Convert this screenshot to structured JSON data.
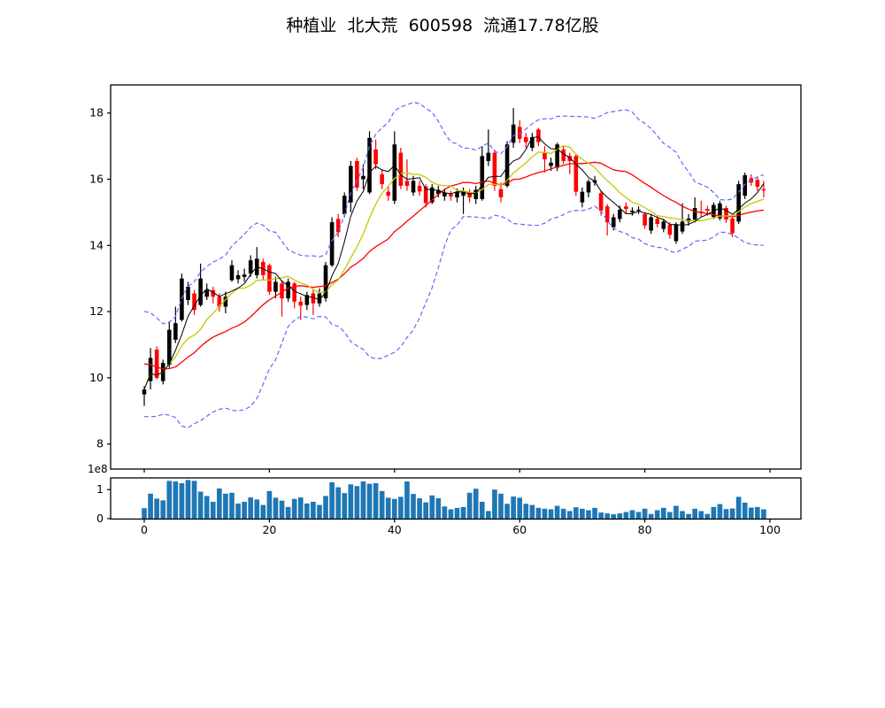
{
  "title": "种植业  北大荒  600598  流通17.78亿股",
  "chart_data": [
    {
      "type": "candlestick",
      "name": "daily-price-with-bollinger-and-moving-averages",
      "x_ticks": [
        0,
        20,
        40,
        60,
        80,
        100
      ],
      "y_ticks": [
        8,
        10,
        12,
        14,
        16,
        18
      ],
      "ylim": [
        7.2,
        18.9
      ],
      "xlim": [
        -5.4,
        104.9
      ],
      "grid": false,
      "legend": "none",
      "up_color": "#000000",
      "down_color": "#ff0000",
      "overlays": [
        {
          "name": "ma-fast",
          "color": "#000000",
          "line_style": "solid"
        },
        {
          "name": "ma-medium",
          "color": "#c8c800",
          "line_style": "solid"
        },
        {
          "name": "ma-slow",
          "color": "#ff0000",
          "line_style": "solid"
        },
        {
          "name": "bollinger-bands",
          "color": "#6666ff",
          "line_style": "dashed"
        }
      ],
      "ohlc": [
        [
          9.5,
          9.75,
          9.15,
          9.65
        ],
        [
          9.9,
          10.9,
          9.65,
          10.6
        ],
        [
          10.85,
          10.95,
          9.95,
          10.0
        ],
        [
          9.9,
          10.55,
          9.8,
          10.45
        ],
        [
          10.4,
          11.7,
          10.3,
          11.45
        ],
        [
          11.15,
          12.15,
          11.05,
          11.65
        ],
        [
          11.75,
          13.15,
          11.7,
          13.0
        ],
        [
          12.35,
          12.9,
          12.2,
          12.75
        ],
        [
          12.55,
          12.65,
          11.9,
          12.05
        ],
        [
          12.2,
          13.45,
          12.15,
          13.0
        ],
        [
          12.45,
          12.85,
          12.35,
          12.65
        ],
        [
          12.65,
          12.75,
          12.25,
          12.45
        ],
        [
          12.45,
          12.55,
          12.0,
          12.15
        ],
        [
          12.15,
          12.6,
          11.95,
          12.45
        ],
        [
          12.95,
          13.55,
          12.9,
          13.4
        ],
        [
          12.98,
          13.25,
          12.85,
          13.1
        ],
        [
          13.05,
          13.3,
          12.9,
          13.12
        ],
        [
          13.15,
          13.7,
          13.05,
          13.55
        ],
        [
          13.1,
          13.95,
          13.0,
          13.6
        ],
        [
          13.5,
          13.6,
          12.95,
          13.1
        ],
        [
          13.4,
          13.45,
          12.5,
          12.6
        ],
        [
          12.6,
          13.05,
          12.4,
          12.9
        ],
        [
          12.85,
          12.95,
          11.85,
          12.4
        ],
        [
          12.4,
          13.0,
          12.3,
          12.9
        ],
        [
          12.85,
          12.9,
          12.1,
          12.3
        ],
        [
          12.3,
          12.45,
          11.75,
          12.18
        ],
        [
          12.2,
          12.6,
          12.05,
          12.5
        ],
        [
          12.55,
          12.65,
          11.9,
          12.25
        ],
        [
          12.25,
          12.7,
          12.15,
          12.55
        ],
        [
          12.4,
          13.5,
          12.3,
          13.4
        ],
        [
          13.4,
          14.85,
          13.35,
          14.7
        ],
        [
          14.8,
          14.95,
          14.25,
          14.4
        ],
        [
          14.95,
          15.6,
          14.85,
          15.5
        ],
        [
          15.3,
          16.55,
          15.0,
          16.4
        ],
        [
          16.55,
          16.65,
          15.65,
          15.75
        ],
        [
          16.0,
          16.45,
          15.7,
          16.1
        ],
        [
          15.6,
          17.45,
          15.55,
          17.25
        ],
        [
          16.9,
          17.2,
          16.3,
          16.45
        ],
        [
          16.15,
          16.3,
          15.7,
          15.85
        ],
        [
          15.62,
          15.8,
          15.35,
          15.5
        ],
        [
          15.35,
          17.45,
          15.25,
          17.05
        ],
        [
          16.8,
          16.95,
          15.7,
          15.8
        ],
        [
          15.95,
          16.6,
          15.65,
          15.8
        ],
        [
          15.6,
          16.1,
          15.5,
          15.95
        ],
        [
          15.8,
          15.95,
          15.5,
          15.63
        ],
        [
          15.78,
          15.85,
          15.15,
          15.28
        ],
        [
          15.3,
          15.85,
          15.25,
          15.75
        ],
        [
          15.55,
          15.8,
          15.45,
          15.68
        ],
        [
          15.48,
          15.72,
          15.35,
          15.6
        ],
        [
          15.55,
          15.65,
          15.35,
          15.48
        ],
        [
          15.45,
          15.72,
          15.3,
          15.62
        ],
        [
          15.5,
          15.75,
          14.95,
          15.65
        ],
        [
          15.6,
          15.7,
          15.3,
          15.45
        ],
        [
          15.4,
          15.8,
          15.25,
          15.68
        ],
        [
          15.4,
          17.0,
          15.35,
          16.7
        ],
        [
          16.55,
          17.5,
          16.4,
          16.8
        ],
        [
          16.8,
          16.9,
          15.65,
          15.8
        ],
        [
          15.7,
          15.9,
          15.3,
          15.45
        ],
        [
          15.8,
          17.15,
          15.75,
          17.05
        ],
        [
          17.1,
          18.15,
          16.95,
          17.65
        ],
        [
          17.58,
          17.78,
          17.1,
          17.22
        ],
        [
          17.27,
          17.4,
          16.95,
          17.12
        ],
        [
          16.95,
          17.4,
          16.85,
          17.27
        ],
        [
          17.5,
          17.55,
          17.0,
          17.12
        ],
        [
          16.8,
          17.0,
          16.2,
          16.6
        ],
        [
          16.4,
          16.65,
          16.25,
          16.5
        ],
        [
          16.35,
          17.1,
          16.25,
          17.05
        ],
        [
          16.9,
          17.0,
          16.45,
          16.55
        ],
        [
          16.7,
          16.8,
          16.15,
          16.55
        ],
        [
          16.7,
          16.75,
          15.5,
          15.62
        ],
        [
          15.3,
          15.75,
          15.15,
          15.62
        ],
        [
          15.6,
          16.0,
          15.45,
          15.93
        ],
        [
          15.9,
          16.1,
          15.8,
          15.97
        ],
        [
          15.58,
          15.65,
          14.9,
          15.05
        ],
        [
          15.18,
          15.25,
          14.3,
          14.7
        ],
        [
          14.55,
          14.95,
          14.45,
          14.85
        ],
        [
          14.8,
          15.2,
          14.7,
          15.08
        ],
        [
          15.18,
          15.3,
          14.95,
          15.1
        ],
        [
          15.0,
          15.15,
          14.9,
          15.05
        ],
        [
          15.05,
          15.18,
          14.95,
          15.08
        ],
        [
          14.95,
          15.0,
          14.5,
          14.6
        ],
        [
          14.45,
          14.95,
          14.35,
          14.85
        ],
        [
          14.8,
          14.9,
          14.55,
          14.65
        ],
        [
          14.5,
          14.8,
          14.4,
          14.72
        ],
        [
          14.62,
          14.7,
          14.2,
          14.32
        ],
        [
          14.13,
          14.7,
          14.05,
          14.63
        ],
        [
          14.42,
          15.27,
          14.35,
          14.72
        ],
        [
          14.72,
          14.95,
          14.6,
          14.81
        ],
        [
          14.78,
          15.45,
          14.7,
          15.13
        ],
        [
          15.02,
          15.35,
          14.85,
          14.98
        ],
        [
          15.1,
          15.2,
          14.9,
          15.05
        ],
        [
          14.86,
          15.3,
          14.8,
          15.22
        ],
        [
          14.82,
          15.35,
          14.75,
          15.27
        ],
        [
          15.13,
          15.2,
          14.68,
          14.78
        ],
        [
          14.81,
          14.9,
          14.25,
          14.37
        ],
        [
          14.72,
          15.95,
          14.65,
          15.85
        ],
        [
          15.5,
          16.2,
          15.4,
          16.12
        ],
        [
          16.03,
          16.15,
          15.8,
          15.9
        ],
        [
          15.98,
          16.08,
          15.65,
          15.77
        ],
        [
          15.7,
          15.95,
          15.45,
          15.66
        ]
      ]
    },
    {
      "type": "bar",
      "name": "volume",
      "unit": "1e8",
      "offset_label": "1e8",
      "color": "#1f77b4",
      "y_ticks": [
        0,
        1
      ],
      "x_ticks": [
        0,
        20,
        40,
        60,
        80,
        100
      ],
      "ylim": [
        0,
        1.42
      ],
      "values": [
        0.36,
        0.86,
        0.69,
        0.63,
        1.3,
        1.28,
        1.22,
        1.33,
        1.3,
        0.93,
        0.78,
        0.58,
        1.04,
        0.86,
        0.89,
        0.52,
        0.58,
        0.73,
        0.66,
        0.47,
        0.95,
        0.72,
        0.62,
        0.4,
        0.68,
        0.73,
        0.52,
        0.58,
        0.47,
        0.78,
        1.25,
        1.08,
        0.88,
        1.18,
        1.12,
        1.28,
        1.2,
        1.22,
        0.95,
        0.72,
        0.68,
        0.75,
        1.28,
        0.85,
        0.7,
        0.56,
        0.8,
        0.7,
        0.42,
        0.32,
        0.37,
        0.4,
        0.89,
        1.03,
        0.58,
        0.26,
        1.0,
        0.86,
        0.51,
        0.76,
        0.72,
        0.51,
        0.47,
        0.37,
        0.34,
        0.32,
        0.44,
        0.34,
        0.26,
        0.39,
        0.34,
        0.29,
        0.37,
        0.21,
        0.18,
        0.15,
        0.18,
        0.23,
        0.29,
        0.23,
        0.34,
        0.16,
        0.29,
        0.37,
        0.23,
        0.44,
        0.26,
        0.16,
        0.34,
        0.26,
        0.16,
        0.4,
        0.5,
        0.33,
        0.35,
        0.75,
        0.55,
        0.38,
        0.4,
        0.32
      ]
    }
  ]
}
